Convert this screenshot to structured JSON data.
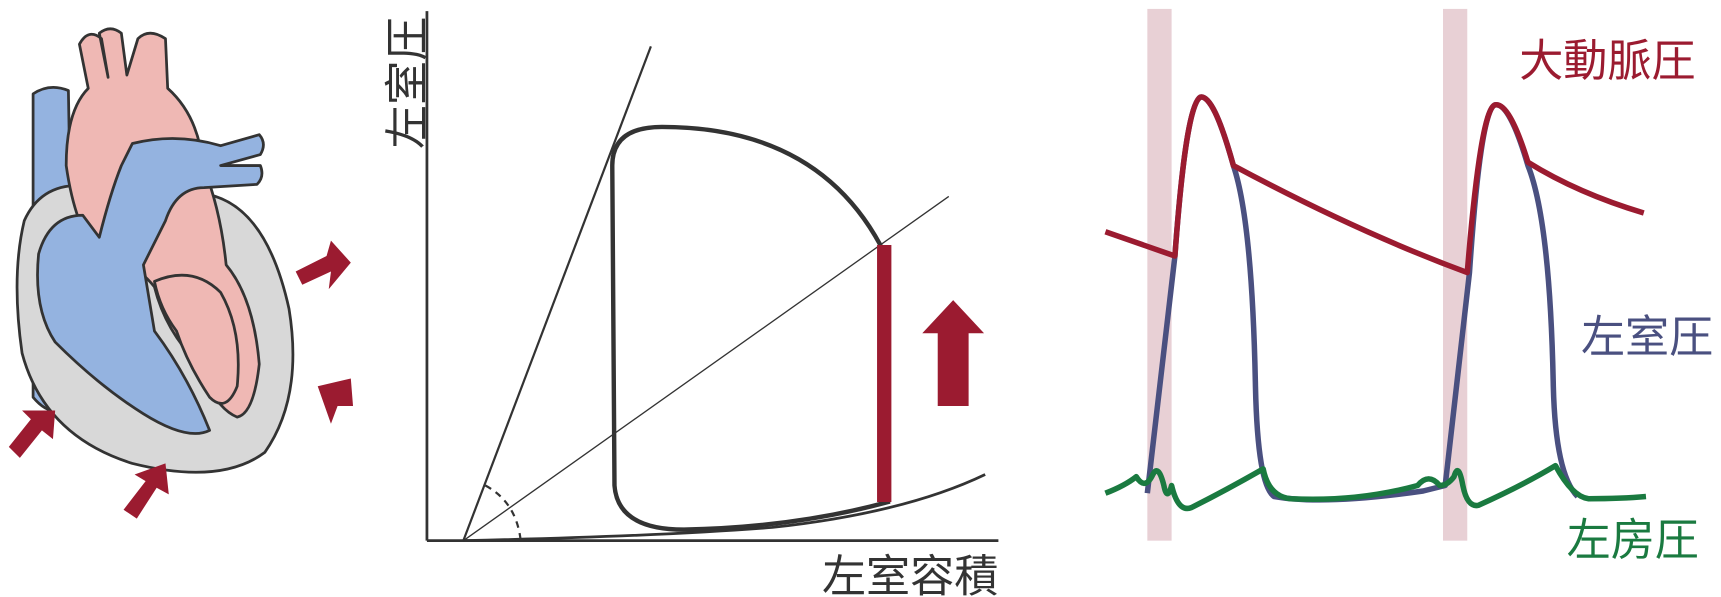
{
  "pv_loop": {
    "y_axis_label": "左室圧",
    "x_axis_label": "左室容積"
  },
  "pressure_traces": {
    "aortic_label": "大動脈圧",
    "ventricular_label": "左室圧",
    "atrial_label": "左房圧"
  }
}
